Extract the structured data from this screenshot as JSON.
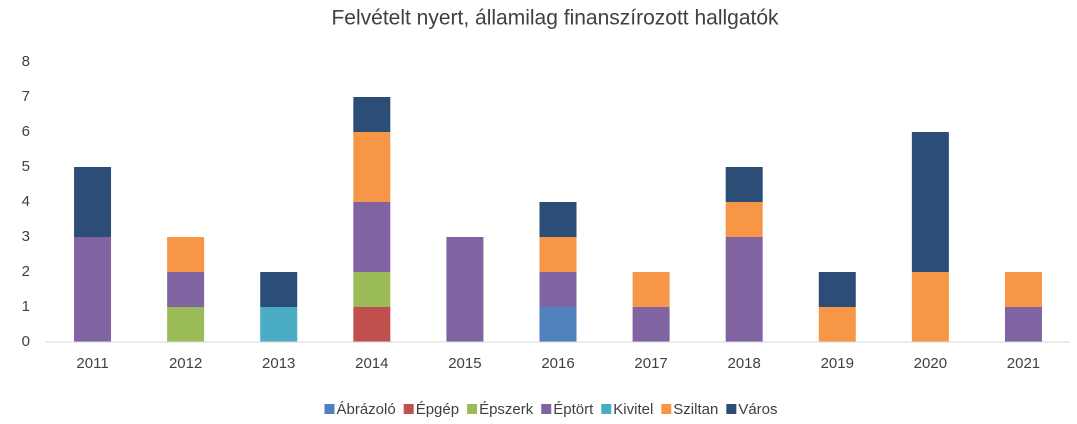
{
  "chart_data": {
    "type": "stacked_bar",
    "title": "Felvételt nyert, államilag finanszírozott hallgatók",
    "categories": [
      "2011",
      "2012",
      "2013",
      "2014",
      "2015",
      "2016",
      "2017",
      "2018",
      "2019",
      "2020",
      "2021"
    ],
    "series": [
      {
        "name": "Ábrázoló",
        "color": "#4f81bd",
        "values": [
          0,
          0,
          0,
          0,
          0,
          1,
          0,
          0,
          0,
          0,
          0
        ]
      },
      {
        "name": "Épgép",
        "color": "#c0504d",
        "values": [
          0,
          0,
          0,
          1,
          0,
          0,
          0,
          0,
          0,
          0,
          0
        ]
      },
      {
        "name": "Épszerk",
        "color": "#9bbb59",
        "values": [
          0,
          1,
          0,
          1,
          0,
          0,
          0,
          0,
          0,
          0,
          0
        ]
      },
      {
        "name": "Éptört",
        "color": "#8064a2",
        "values": [
          3,
          1,
          0,
          2,
          3,
          1,
          1,
          3,
          0,
          0,
          1
        ]
      },
      {
        "name": "Kivitel",
        "color": "#4bacc6",
        "values": [
          0,
          0,
          1,
          0,
          0,
          0,
          0,
          0,
          0,
          0,
          0
        ]
      },
      {
        "name": "Sziltan",
        "color": "#f79646",
        "values": [
          0,
          1,
          0,
          2,
          0,
          1,
          1,
          1,
          1,
          2,
          1
        ]
      },
      {
        "name": "Város",
        "color": "#2c4d75",
        "values": [
          2,
          0,
          1,
          1,
          0,
          1,
          0,
          1,
          1,
          4,
          0
        ]
      }
    ],
    "ylim": [
      0,
      8
    ],
    "yticks": [
      0,
      1,
      2,
      3,
      4,
      5,
      6,
      7,
      8
    ],
    "grid": false,
    "legend": "bottom"
  }
}
